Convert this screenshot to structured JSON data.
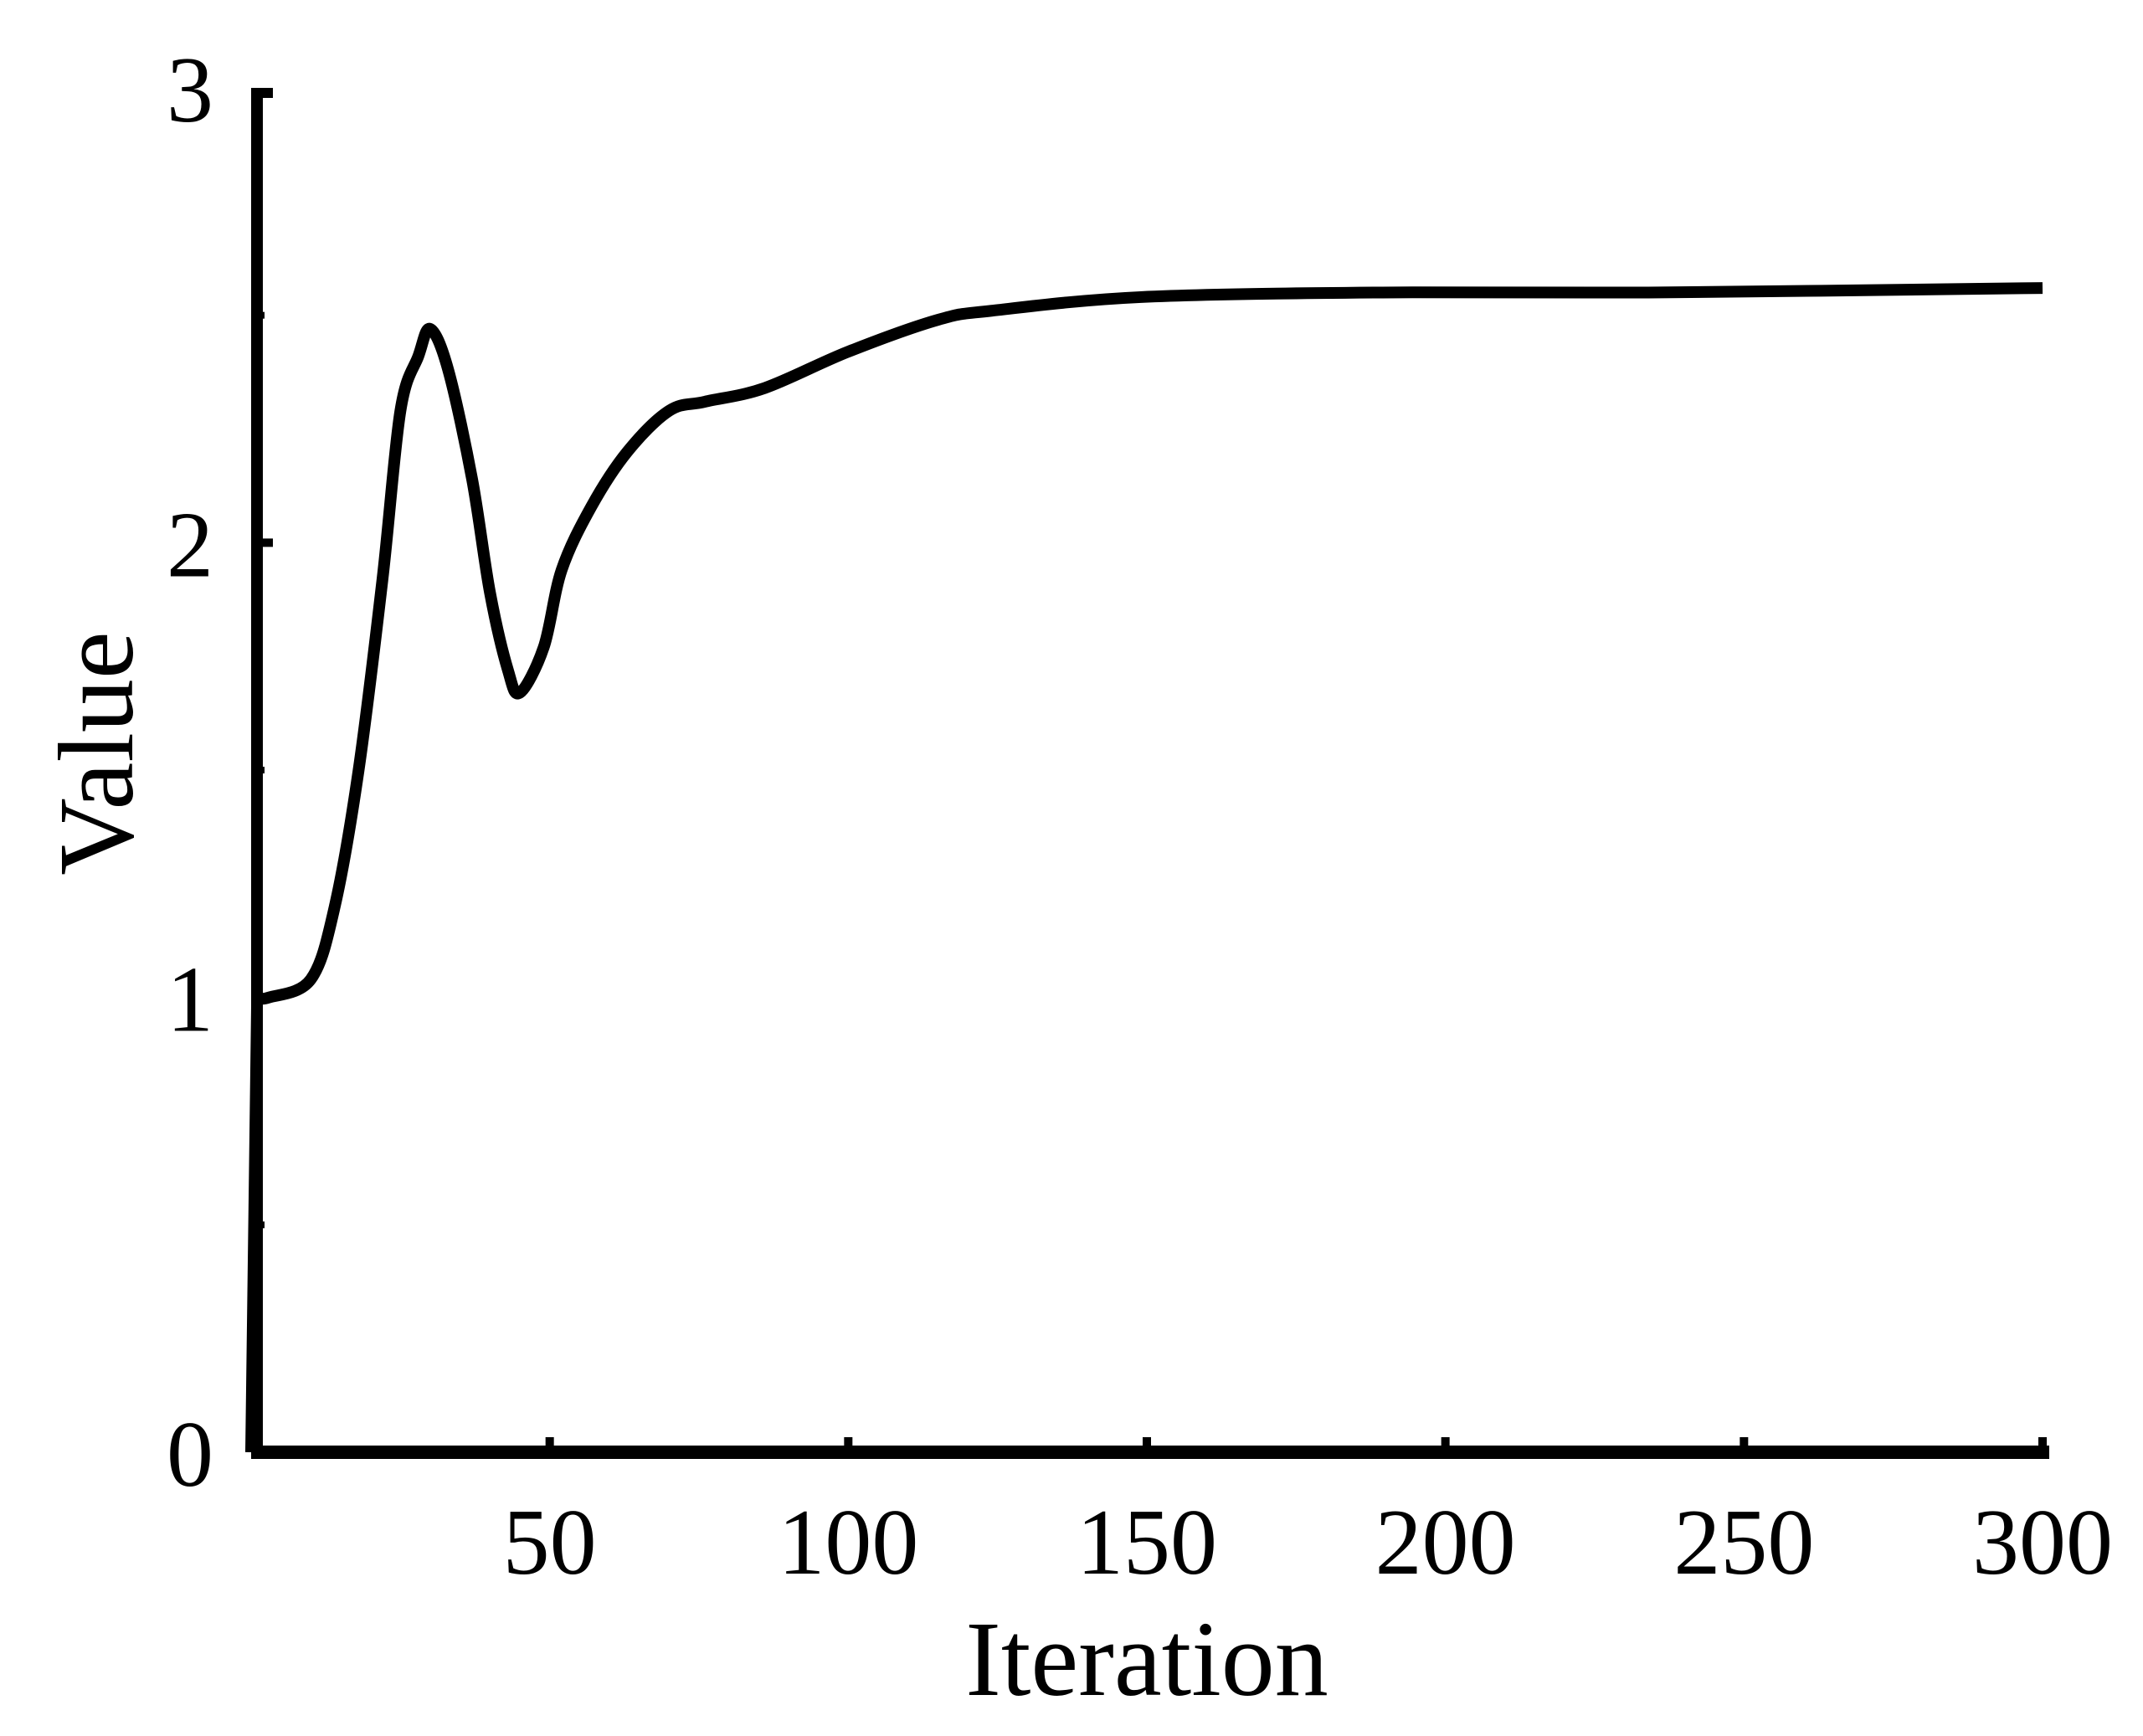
{
  "chart_data": {
    "type": "line",
    "title": "",
    "xlabel": "Iteration",
    "ylabel": "Value",
    "xlim": [
      0,
      300
    ],
    "ylim": [
      0,
      3
    ],
    "grid": false,
    "legend": null,
    "x_ticks": [
      50,
      100,
      150,
      200,
      250,
      300
    ],
    "x_tick_labels": [
      "50",
      "100",
      "150",
      "200",
      "250",
      "300"
    ],
    "y_ticks": [
      0,
      1,
      2,
      3
    ],
    "y_tick_labels": [
      "0",
      "1",
      "2",
      "3"
    ],
    "series": [
      {
        "name": "Value",
        "color": "#000000",
        "x": [
          0,
          1,
          3,
          10,
          14,
          18,
          22,
          25,
          28,
          30,
          33,
          37,
          40,
          43,
          45,
          49,
          52,
          57,
          63,
          70,
          76,
          86,
          100,
          115,
          124,
          149,
          188,
          234,
          300
        ],
        "y": [
          0,
          1.0,
          1.0,
          1.04,
          1.2,
          1.5,
          1.92,
          2.29,
          2.41,
          2.47,
          2.38,
          2.14,
          1.89,
          1.72,
          1.67,
          1.77,
          1.94,
          2.08,
          2.2,
          2.29,
          2.31,
          2.34,
          2.42,
          2.49,
          2.51,
          2.54,
          2.55,
          2.55,
          2.56
        ]
      }
    ]
  }
}
